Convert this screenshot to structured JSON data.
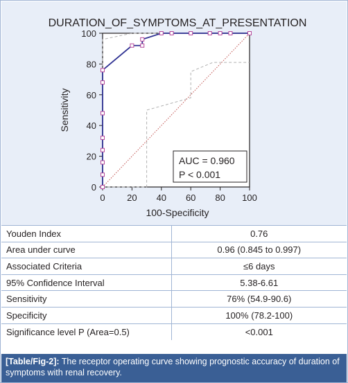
{
  "chart_data": {
    "type": "line",
    "title": "DURATION_OF_SYMPTOMS_AT_PRESENTATION",
    "xlabel": "100-Specificity",
    "ylabel": "Sensitivity",
    "xlim": [
      0,
      100
    ],
    "ylim": [
      0,
      100
    ],
    "x_ticks": [
      "0",
      "20",
      "40",
      "60",
      "80",
      "100"
    ],
    "y_ticks": [
      "0",
      "20",
      "40",
      "60",
      "80",
      "100"
    ],
    "grid": false,
    "series": [
      {
        "role": "roc-curve",
        "x": [
          0,
          0,
          0,
          0,
          0,
          0,
          0,
          0,
          0,
          0,
          20,
          27,
          27,
          40,
          100
        ],
        "y": [
          0,
          8,
          16,
          24,
          32,
          48,
          60,
          68,
          76,
          76,
          92,
          92,
          96,
          100,
          100
        ],
        "markers": [
          [
            0,
            0
          ],
          [
            0,
            8
          ],
          [
            0,
            16
          ],
          [
            0,
            24
          ],
          [
            0,
            32
          ],
          [
            0,
            48
          ],
          [
            0,
            68
          ],
          [
            0,
            76
          ],
          [
            20,
            92
          ],
          [
            27,
            92
          ],
          [
            27,
            96
          ],
          [
            40,
            100
          ],
          [
            47,
            100
          ],
          [
            60,
            100
          ],
          [
            73,
            100
          ],
          [
            80,
            100
          ],
          [
            87,
            100
          ],
          [
            100,
            100
          ]
        ],
        "color": "#2e3192"
      },
      {
        "role": "confidence-upper",
        "x": [
          0,
          0,
          20,
          27,
          40,
          100
        ],
        "y": [
          0,
          96,
          100,
          100,
          100,
          100
        ],
        "color": "#b0b0b0"
      },
      {
        "role": "confidence-lower",
        "x": [
          0,
          30,
          30,
          60,
          60,
          75,
          75,
          100
        ],
        "y": [
          0,
          0,
          50,
          58,
          75,
          81,
          81,
          81
        ],
        "color": "#b0b0b0"
      },
      {
        "role": "reference-diagonal",
        "x": [
          0,
          100
        ],
        "y": [
          0,
          100
        ],
        "color": "#c0504d"
      }
    ],
    "annotation": {
      "auc": "AUC = 0.960",
      "p": "P < 0.001"
    }
  },
  "table": {
    "rows": [
      {
        "label": "Youden Index",
        "value": "0.76"
      },
      {
        "label": "Area under curve",
        "value": "0.96 (0.845 to 0.997)"
      },
      {
        "label": "Associated Criteria",
        "value": "≤6 days"
      },
      {
        "label": "95% Confidence Interval",
        "value": "5.38-6.61"
      },
      {
        "label": "Sensitivity",
        "value": "76% (54.9-90.6)"
      },
      {
        "label": "Specificity",
        "value": "100% (78.2-100)"
      },
      {
        "label": "Significance level P (Area=0.5)",
        "value": "<0.001"
      }
    ]
  },
  "caption": {
    "tag": "[Table/Fig-2]:",
    "text": " The receptor operating curve showing prognostic accuracy of duration of symptoms with renal recovery."
  },
  "colors": {
    "chart_background": "#e8eef8",
    "border": "#9fb4d4",
    "caption_background": "#3a5f95"
  }
}
